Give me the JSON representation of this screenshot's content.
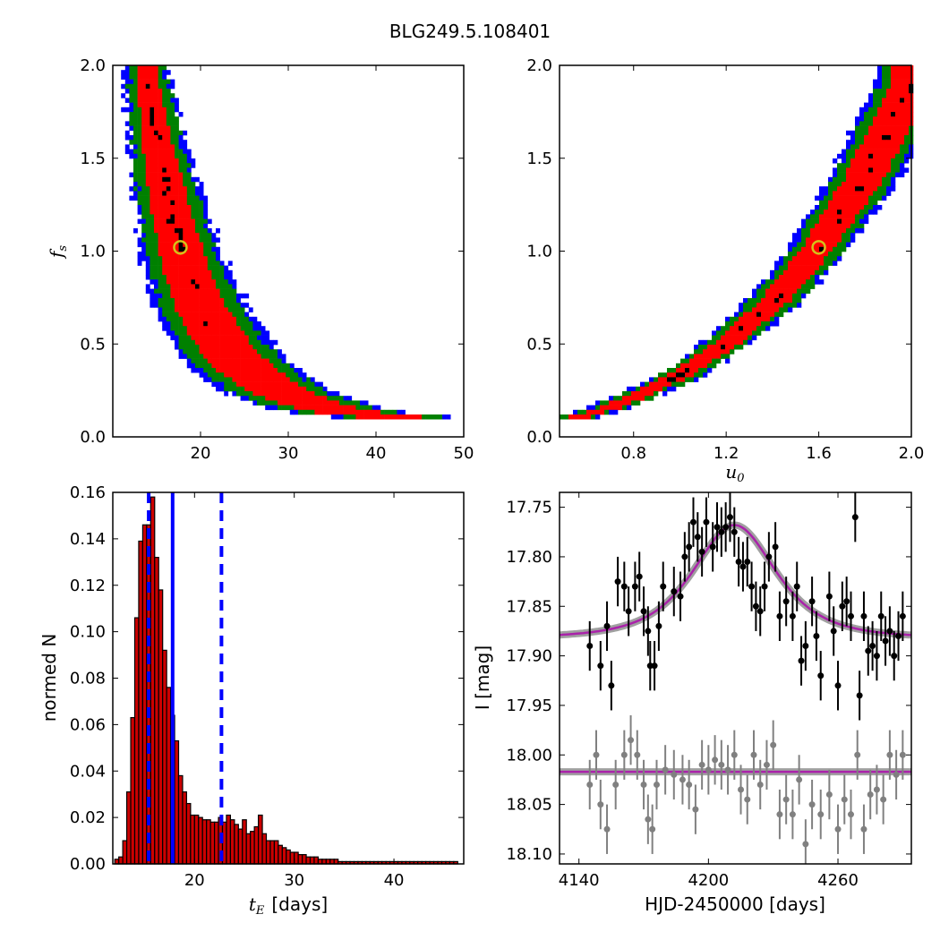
{
  "figure_title": "BLG249.5.108401",
  "chart_data": [
    {
      "type": "heatmap",
      "panel": "top-left",
      "xlabel": "",
      "ylabel": "f_s",
      "ylabel_main": "f",
      "ylabel_sub": "s",
      "xlim": [
        10,
        50
      ],
      "ylim": [
        0,
        2.0
      ],
      "xticks": [
        "20",
        "30",
        "40",
        "50"
      ],
      "yticks": [
        "0.0",
        "0.5",
        "1.0",
        "1.5",
        "2.0"
      ],
      "best_fit": {
        "x": 17.7,
        "y": 1.02
      },
      "relation": "f_s increases as t_E decreases (curved confidence band)",
      "band_center": [
        [
          13.8,
          2.0
        ],
        [
          15.0,
          1.6
        ],
        [
          16.5,
          1.25
        ],
        [
          18.0,
          0.95
        ],
        [
          20.0,
          0.7
        ],
        [
          22.5,
          0.5
        ],
        [
          25.5,
          0.35
        ],
        [
          29.0,
          0.24
        ],
        [
          33.0,
          0.17
        ],
        [
          38.0,
          0.12
        ],
        [
          44.0,
          0.1
        ]
      ],
      "levels": [
        {
          "name": "black",
          "color": "#000000"
        },
        {
          "name": "red",
          "color": "#ff0000"
        },
        {
          "name": "green",
          "color": "#008000"
        },
        {
          "name": "blue",
          "color": "#0000ff"
        }
      ]
    },
    {
      "type": "heatmap",
      "panel": "top-right",
      "xlabel": "u_0",
      "xlabel_main": "u",
      "xlabel_sub": "0",
      "ylabel": "",
      "xlim": [
        0.48,
        2.0
      ],
      "ylim": [
        0,
        2.0
      ],
      "xticks": [
        "0.8",
        "1.2",
        "1.6",
        "2.0"
      ],
      "yticks": [
        "0.0",
        "0.5",
        "1.0",
        "1.5",
        "2.0"
      ],
      "best_fit": {
        "x": 1.6,
        "y": 1.02
      },
      "band_center": [
        [
          0.55,
          0.1
        ],
        [
          0.7,
          0.16
        ],
        [
          0.85,
          0.24
        ],
        [
          1.0,
          0.33
        ],
        [
          1.2,
          0.5
        ],
        [
          1.4,
          0.72
        ],
        [
          1.6,
          1.02
        ],
        [
          1.8,
          1.4
        ],
        [
          2.0,
          1.9
        ]
      ],
      "levels": [
        {
          "name": "black",
          "color": "#000000"
        },
        {
          "name": "red",
          "color": "#ff0000"
        },
        {
          "name": "green",
          "color": "#008000"
        },
        {
          "name": "blue",
          "color": "#0000ff"
        }
      ]
    },
    {
      "type": "bar",
      "panel": "bottom-left",
      "xlabel": "t_E  [days]",
      "xlabel_main": "t",
      "xlabel_sub": "E",
      "xlabel_unit": "[days]",
      "ylabel": "normed N",
      "xlim": [
        11.8,
        47
      ],
      "ylim": [
        0,
        0.16
      ],
      "xticks": [
        "20",
        "30",
        "40"
      ],
      "yticks": [
        "0.00",
        "0.02",
        "0.04",
        "0.06",
        "0.08",
        "0.10",
        "0.12",
        "0.14",
        "0.16"
      ],
      "bin_start": 12.0,
      "bin_width": 0.4,
      "values": [
        0.002,
        0.003,
        0.01,
        0.031,
        0.063,
        0.106,
        0.139,
        0.146,
        0.146,
        0.158,
        0.132,
        0.118,
        0.092,
        0.076,
        0.064,
        0.053,
        0.038,
        0.031,
        0.026,
        0.021,
        0.021,
        0.02,
        0.019,
        0.019,
        0.018,
        0.018,
        0.02,
        0.018,
        0.021,
        0.019,
        0.017,
        0.015,
        0.019,
        0.013,
        0.014,
        0.016,
        0.021,
        0.013,
        0.01,
        0.01,
        0.01,
        0.008,
        0.007,
        0.006,
        0.005,
        0.005,
        0.004,
        0.004,
        0.003,
        0.003,
        0.003,
        0.002,
        0.002,
        0.002,
        0.002,
        0.002,
        0.001,
        0.001,
        0.001,
        0.001,
        0.001,
        0.001,
        0.001,
        0.001,
        0.001,
        0.001,
        0.001,
        0.001,
        0.001,
        0.001,
        0.001,
        0.001,
        0.001,
        0.001,
        0.001,
        0.001,
        0.001,
        0.001,
        0.001,
        0.001,
        0.001,
        0.001,
        0.001,
        0.001,
        0.001,
        0.001
      ],
      "bar_color": "#cc0000",
      "median": 17.8,
      "interval": [
        15.4,
        22.7
      ],
      "line_color": "#0000ff"
    },
    {
      "type": "scatter",
      "panel": "bottom-right",
      "xlabel": "HJD-2450000 [days]",
      "ylabel": "I [mag]",
      "xlim": [
        4131,
        4294
      ],
      "ylim": [
        18.11,
        17.735
      ],
      "xticks": [
        "4140",
        "4200",
        "4260"
      ],
      "xtick_values": [
        4140,
        4200,
        4260
      ],
      "yticks": [
        "17.75",
        "17.80",
        "17.85",
        "17.90",
        "17.95",
        "18.00",
        "18.05",
        "18.10"
      ],
      "ytick_values": [
        17.75,
        17.8,
        17.85,
        17.9,
        17.95,
        18.0,
        18.05,
        18.1
      ],
      "model": {
        "t0": 4212,
        "tE": 17.7,
        "u0": 1.6,
        "baseline": 17.882,
        "peak": 17.768,
        "color": "#aa22aa",
        "band_color": "#888888"
      },
      "series": [
        {
          "name": "",
          "color": "#000000",
          "points": [
            [
              4145,
              17.89,
              0.025
            ],
            [
              4150,
              17.91,
              0.025
            ],
            [
              4153,
              17.87,
              0.025
            ],
            [
              4155,
              17.93,
              0.025
            ],
            [
              4158,
              17.825,
              0.025
            ],
            [
              4161,
              17.83,
              0.025
            ],
            [
              4163,
              17.855,
              0.025
            ],
            [
              4166,
              17.83,
              0.025
            ],
            [
              4168,
              17.82,
              0.025
            ],
            [
              4170,
              17.855,
              0.025
            ],
            [
              4172,
              17.875,
              0.025
            ],
            [
              4173,
              17.91,
              0.025
            ],
            [
              4175,
              17.91,
              0.025
            ],
            [
              4177,
              17.87,
              0.025
            ],
            [
              4179,
              17.83,
              0.025
            ],
            [
              4184,
              17.835,
              0.025
            ],
            [
              4187,
              17.84,
              0.025
            ],
            [
              4189,
              17.8,
              0.025
            ],
            [
              4191,
              17.79,
              0.025
            ],
            [
              4193,
              17.765,
              0.025
            ],
            [
              4195,
              17.78,
              0.025
            ],
            [
              4197,
              17.795,
              0.025
            ],
            [
              4199,
              17.765,
              0.025
            ],
            [
              4202,
              17.79,
              0.025
            ],
            [
              4204,
              17.77,
              0.025
            ],
            [
              4206,
              17.775,
              0.025
            ],
            [
              4208,
              17.77,
              0.025
            ],
            [
              4210,
              17.76,
              0.025
            ],
            [
              4212,
              17.775,
              0.025
            ],
            [
              4214,
              17.805,
              0.025
            ],
            [
              4216,
              17.81,
              0.025
            ],
            [
              4218,
              17.805,
              0.025
            ],
            [
              4220,
              17.83,
              0.025
            ],
            [
              4222,
              17.85,
              0.025
            ],
            [
              4224,
              17.855,
              0.025
            ],
            [
              4226,
              17.83,
              0.025
            ],
            [
              4228,
              17.8,
              0.025
            ],
            [
              4231,
              17.79,
              0.025
            ],
            [
              4233,
              17.86,
              0.025
            ],
            [
              4236,
              17.845,
              0.025
            ],
            [
              4239,
              17.86,
              0.025
            ],
            [
              4241,
              17.83,
              0.025
            ],
            [
              4243,
              17.905,
              0.025
            ],
            [
              4245,
              17.89,
              0.025
            ],
            [
              4248,
              17.845,
              0.025
            ],
            [
              4250,
              17.88,
              0.025
            ],
            [
              4252,
              17.92,
              0.025
            ],
            [
              4256,
              17.84,
              0.025
            ],
            [
              4258,
              17.875,
              0.025
            ],
            [
              4260,
              17.93,
              0.025
            ],
            [
              4262,
              17.85,
              0.025
            ],
            [
              4264,
              17.845,
              0.025
            ],
            [
              4266,
              17.86,
              0.025
            ],
            [
              4268,
              17.76,
              0.025
            ],
            [
              4270,
              17.94,
              0.025
            ],
            [
              4272,
              17.86,
              0.025
            ],
            [
              4274,
              17.895,
              0.025
            ],
            [
              4276,
              17.89,
              0.025
            ],
            [
              4278,
              17.9,
              0.025
            ],
            [
              4280,
              17.86,
              0.025
            ],
            [
              4282,
              17.885,
              0.025
            ],
            [
              4284,
              17.875,
              0.025
            ],
            [
              4286,
              17.9,
              0.025
            ],
            [
              4288,
              17.88,
              0.025
            ],
            [
              4290,
              17.86,
              0.025
            ]
          ]
        },
        {
          "name": "",
          "color": "#808080",
          "offset": 0.135,
          "points": [
            [
              4145,
              18.03,
              0.025
            ],
            [
              4148,
              18.0,
              0.025
            ],
            [
              4150,
              18.05,
              0.025
            ],
            [
              4153,
              18.075,
              0.025
            ],
            [
              4157,
              18.03,
              0.025
            ],
            [
              4161,
              18.0,
              0.025
            ],
            [
              4164,
              17.985,
              0.025
            ],
            [
              4167,
              18.0,
              0.025
            ],
            [
              4170,
              18.03,
              0.025
            ],
            [
              4172,
              18.065,
              0.025
            ],
            [
              4174,
              18.075,
              0.025
            ],
            [
              4176,
              18.03,
              0.025
            ],
            [
              4180,
              18.015,
              0.025
            ],
            [
              4184,
              18.02,
              0.025
            ],
            [
              4188,
              18.025,
              0.025
            ],
            [
              4191,
              18.03,
              0.025
            ],
            [
              4194,
              18.055,
              0.025
            ],
            [
              4197,
              18.01,
              0.025
            ],
            [
              4200,
              18.015,
              0.025
            ],
            [
              4203,
              18.005,
              0.025
            ],
            [
              4206,
              18.01,
              0.025
            ],
            [
              4209,
              18.015,
              0.025
            ],
            [
              4212,
              18.0,
              0.025
            ],
            [
              4215,
              18.035,
              0.025
            ],
            [
              4218,
              18.045,
              0.025
            ],
            [
              4221,
              18.0,
              0.025
            ],
            [
              4224,
              18.03,
              0.025
            ],
            [
              4227,
              18.01,
              0.025
            ],
            [
              4230,
              17.99,
              0.025
            ],
            [
              4233,
              18.06,
              0.025
            ],
            [
              4236,
              18.045,
              0.025
            ],
            [
              4239,
              18.06,
              0.025
            ],
            [
              4242,
              18.025,
              0.025
            ],
            [
              4245,
              18.09,
              0.025
            ],
            [
              4248,
              18.05,
              0.025
            ],
            [
              4252,
              18.06,
              0.025
            ],
            [
              4256,
              18.04,
              0.025
            ],
            [
              4260,
              18.075,
              0.025
            ],
            [
              4263,
              18.045,
              0.025
            ],
            [
              4266,
              18.06,
              0.025
            ],
            [
              4269,
              18.0,
              0.025
            ],
            [
              4272,
              18.075,
              0.025
            ],
            [
              4275,
              18.04,
              0.025
            ],
            [
              4278,
              18.035,
              0.025
            ],
            [
              4281,
              18.045,
              0.025
            ],
            [
              4284,
              18.0,
              0.025
            ],
            [
              4287,
              18.02,
              0.025
            ],
            [
              4290,
              18.0,
              0.025
            ]
          ]
        }
      ]
    }
  ]
}
